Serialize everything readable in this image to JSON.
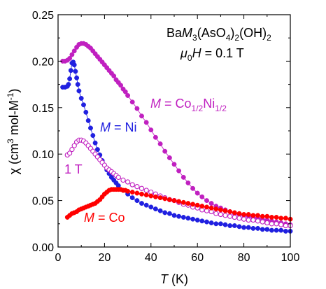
{
  "chart_data": {
    "type": "scatter",
    "title": "",
    "xlabel": {
      "italic": "T",
      "rest": " (K)"
    },
    "ylabel": {
      "main": "χ (cm",
      "sup1": "3",
      "mid": " mol-M",
      "sup2": "-1",
      "end": ")"
    },
    "xlim": [
      0,
      100
    ],
    "ylim": [
      0,
      0.25
    ],
    "xticks": [
      "0",
      "20",
      "40",
      "60",
      "80",
      "100"
    ],
    "yticks": [
      "0.00",
      "0.05",
      "0.10",
      "0.15",
      "0.20",
      "0.25"
    ],
    "annotations": {
      "compound": {
        "a": "Ba",
        "b": "M",
        "c": "3",
        "d": "(AsO",
        "e": "4",
        "f": ")",
        "g": "2",
        "h": "(OH)",
        "i": "2"
      },
      "field": {
        "a": "μ",
        "b": "0",
        "c": "H",
        "d": " = 0.1 T"
      },
      "label_mix": {
        "a": "M",
        "b": " = Co",
        "c": "1/2",
        "d": "Ni",
        "e": "1/2"
      },
      "label_ni": {
        "a": "M",
        "b": " = Ni"
      },
      "label_1t": "1 T",
      "label_co": {
        "a": "M",
        "b": " = Co"
      }
    },
    "series": [
      {
        "key": "mix",
        "color": "#c020c0",
        "marker": "filled-circle",
        "points": [
          [
            2,
            0.2
          ],
          [
            3,
            0.2
          ],
          [
            4,
            0.201
          ],
          [
            5,
            0.203
          ],
          [
            6,
            0.207
          ],
          [
            7,
            0.211
          ],
          [
            8,
            0.215
          ],
          [
            9,
            0.218
          ],
          [
            10,
            0.219
          ],
          [
            11,
            0.219
          ],
          [
            12,
            0.218
          ],
          [
            13,
            0.216
          ],
          [
            14,
            0.214
          ],
          [
            15,
            0.211
          ],
          [
            16,
            0.208
          ],
          [
            17,
            0.205
          ],
          [
            18,
            0.202
          ],
          [
            19,
            0.199
          ],
          [
            20,
            0.196
          ],
          [
            21,
            0.193
          ],
          [
            22,
            0.19
          ],
          [
            23,
            0.187
          ],
          [
            24,
            0.184
          ],
          [
            25,
            0.18
          ],
          [
            26,
            0.177
          ],
          [
            27,
            0.174
          ],
          [
            28,
            0.17
          ],
          [
            29,
            0.167
          ],
          [
            30,
            0.163
          ],
          [
            32,
            0.156
          ],
          [
            34,
            0.149
          ],
          [
            36,
            0.141
          ],
          [
            38,
            0.134
          ],
          [
            40,
            0.126
          ],
          [
            42,
            0.118
          ],
          [
            44,
            0.111
          ],
          [
            46,
            0.103
          ],
          [
            48,
            0.096
          ],
          [
            50,
            0.089
          ],
          [
            52,
            0.082
          ],
          [
            54,
            0.075
          ],
          [
            56,
            0.069
          ],
          [
            58,
            0.063
          ],
          [
            60,
            0.058
          ],
          [
            62,
            0.054
          ],
          [
            64,
            0.05
          ],
          [
            66,
            0.047
          ],
          [
            68,
            0.044
          ],
          [
            70,
            0.042
          ],
          [
            72,
            0.04
          ],
          [
            74,
            0.038
          ],
          [
            76,
            0.036
          ],
          [
            78,
            0.035
          ],
          [
            80,
            0.034
          ],
          [
            82,
            0.033
          ],
          [
            84,
            0.032
          ],
          [
            86,
            0.031
          ],
          [
            88,
            0.03
          ],
          [
            90,
            0.029
          ],
          [
            92,
            0.028
          ],
          [
            94,
            0.027
          ],
          [
            96,
            0.026
          ],
          [
            98,
            0.025
          ],
          [
            100,
            0.024
          ]
        ]
      },
      {
        "key": "ni",
        "color": "#2020e0",
        "marker": "filled-circle",
        "points": [
          [
            2,
            0.172
          ],
          [
            3,
            0.172
          ],
          [
            4,
            0.173
          ],
          [
            4.5,
            0.175
          ],
          [
            5,
            0.181
          ],
          [
            5.5,
            0.19
          ],
          [
            6,
            0.198
          ],
          [
            6.5,
            0.199
          ],
          [
            7,
            0.196
          ],
          [
            7.5,
            0.189
          ],
          [
            8,
            0.182
          ],
          [
            8.5,
            0.175
          ],
          [
            9,
            0.168
          ],
          [
            10,
            0.16
          ],
          [
            11,
            0.153
          ],
          [
            12,
            0.145
          ],
          [
            13,
            0.136
          ],
          [
            14,
            0.128
          ],
          [
            15,
            0.12
          ],
          [
            16,
            0.112
          ],
          [
            17,
            0.105
          ],
          [
            18,
            0.099
          ],
          [
            19,
            0.093
          ],
          [
            20,
            0.088
          ],
          [
            21,
            0.083
          ],
          [
            22,
            0.079
          ],
          [
            23,
            0.075
          ],
          [
            24,
            0.072
          ],
          [
            25,
            0.069
          ],
          [
            26,
            0.066
          ],
          [
            28,
            0.061
          ],
          [
            30,
            0.057
          ],
          [
            32,
            0.053
          ],
          [
            34,
            0.05
          ],
          [
            36,
            0.047
          ],
          [
            38,
            0.045
          ],
          [
            40,
            0.043
          ],
          [
            42,
            0.041
          ],
          [
            44,
            0.039
          ],
          [
            46,
            0.037
          ],
          [
            48,
            0.036
          ],
          [
            50,
            0.034
          ],
          [
            52,
            0.033
          ],
          [
            54,
            0.032
          ],
          [
            56,
            0.031
          ],
          [
            58,
            0.03
          ],
          [
            60,
            0.029
          ],
          [
            62,
            0.028
          ],
          [
            64,
            0.027
          ],
          [
            66,
            0.026
          ],
          [
            68,
            0.025
          ],
          [
            70,
            0.025
          ],
          [
            72,
            0.024
          ],
          [
            74,
            0.023
          ],
          [
            76,
            0.023
          ],
          [
            78,
            0.022
          ],
          [
            80,
            0.021
          ],
          [
            82,
            0.021
          ],
          [
            84,
            0.02
          ],
          [
            86,
            0.02
          ],
          [
            88,
            0.019
          ],
          [
            90,
            0.019
          ],
          [
            92,
            0.018
          ],
          [
            94,
            0.018
          ],
          [
            96,
            0.018
          ],
          [
            98,
            0.017
          ],
          [
            100,
            0.017
          ]
        ]
      },
      {
        "key": "ni_1t",
        "color": "#c020c0",
        "marker": "open-circle",
        "points": [
          [
            4,
            0.099
          ],
          [
            5,
            0.101
          ],
          [
            6,
            0.105
          ],
          [
            7,
            0.109
          ],
          [
            8,
            0.113
          ],
          [
            9,
            0.115
          ],
          [
            10,
            0.115
          ],
          [
            11,
            0.114
          ],
          [
            12,
            0.112
          ],
          [
            13,
            0.109
          ],
          [
            14,
            0.106
          ],
          [
            15,
            0.103
          ],
          [
            16,
            0.1
          ],
          [
            17,
            0.097
          ],
          [
            18,
            0.094
          ],
          [
            19,
            0.091
          ],
          [
            20,
            0.088
          ],
          [
            21,
            0.085
          ],
          [
            22,
            0.083
          ],
          [
            23,
            0.081
          ],
          [
            24,
            0.079
          ],
          [
            25,
            0.077
          ],
          [
            26,
            0.075
          ],
          [
            28,
            0.072
          ],
          [
            30,
            0.07
          ],
          [
            32,
            0.067
          ],
          [
            34,
            0.065
          ],
          [
            36,
            0.063
          ],
          [
            38,
            0.061
          ],
          [
            40,
            0.059
          ],
          [
            42,
            0.057
          ],
          [
            44,
            0.055
          ],
          [
            46,
            0.053
          ],
          [
            48,
            0.051
          ],
          [
            50,
            0.05
          ],
          [
            52,
            0.048
          ],
          [
            54,
            0.046
          ],
          [
            56,
            0.045
          ],
          [
            58,
            0.043
          ],
          [
            60,
            0.042
          ],
          [
            62,
            0.04
          ],
          [
            64,
            0.039
          ],
          [
            66,
            0.038
          ],
          [
            68,
            0.036
          ],
          [
            70,
            0.035
          ],
          [
            72,
            0.034
          ],
          [
            74,
            0.033
          ],
          [
            76,
            0.032
          ],
          [
            78,
            0.031
          ],
          [
            80,
            0.03
          ],
          [
            82,
            0.029
          ],
          [
            84,
            0.029
          ],
          [
            86,
            0.028
          ],
          [
            88,
            0.027
          ],
          [
            90,
            0.026
          ],
          [
            92,
            0.025
          ],
          [
            94,
            0.025
          ],
          [
            96,
            0.024
          ],
          [
            98,
            0.023
          ],
          [
            100,
            0.023
          ]
        ]
      },
      {
        "key": "co",
        "color": "#ff0000",
        "marker": "filled-circle",
        "points": [
          [
            4,
            0.032
          ],
          [
            5,
            0.034
          ],
          [
            6,
            0.036
          ],
          [
            7,
            0.037
          ],
          [
            8,
            0.038
          ],
          [
            9,
            0.04
          ],
          [
            10,
            0.041
          ],
          [
            11,
            0.042
          ],
          [
            12,
            0.043
          ],
          [
            13,
            0.044
          ],
          [
            14,
            0.045
          ],
          [
            15,
            0.046
          ],
          [
            16,
            0.047
          ],
          [
            17,
            0.049
          ],
          [
            18,
            0.051
          ],
          [
            19,
            0.054
          ],
          [
            20,
            0.057
          ],
          [
            21,
            0.059
          ],
          [
            22,
            0.061
          ],
          [
            23,
            0.062
          ],
          [
            24,
            0.062
          ],
          [
            25,
            0.062
          ],
          [
            26,
            0.062
          ],
          [
            27,
            0.062
          ],
          [
            28,
            0.061
          ],
          [
            29,
            0.061
          ],
          [
            30,
            0.06
          ],
          [
            32,
            0.059
          ],
          [
            34,
            0.058
          ],
          [
            36,
            0.057
          ],
          [
            38,
            0.056
          ],
          [
            40,
            0.055
          ],
          [
            42,
            0.054
          ],
          [
            44,
            0.053
          ],
          [
            46,
            0.052
          ],
          [
            48,
            0.051
          ],
          [
            50,
            0.05
          ],
          [
            52,
            0.049
          ],
          [
            54,
            0.048
          ],
          [
            56,
            0.047
          ],
          [
            58,
            0.046
          ],
          [
            60,
            0.045
          ],
          [
            62,
            0.044
          ],
          [
            64,
            0.043
          ],
          [
            66,
            0.042
          ],
          [
            68,
            0.041
          ],
          [
            70,
            0.04
          ],
          [
            72,
            0.039
          ],
          [
            74,
            0.038
          ],
          [
            76,
            0.037
          ],
          [
            78,
            0.036
          ],
          [
            80,
            0.035
          ],
          [
            82,
            0.035
          ],
          [
            84,
            0.034
          ],
          [
            86,
            0.034
          ],
          [
            88,
            0.033
          ],
          [
            90,
            0.033
          ],
          [
            92,
            0.032
          ],
          [
            94,
            0.032
          ],
          [
            96,
            0.031
          ],
          [
            98,
            0.031
          ],
          [
            100,
            0.03
          ]
        ]
      }
    ]
  }
}
